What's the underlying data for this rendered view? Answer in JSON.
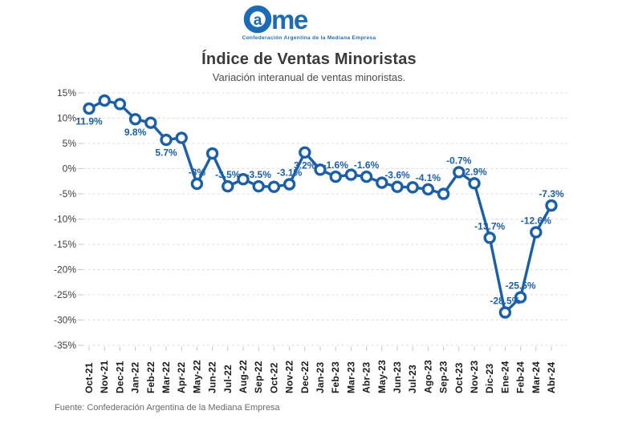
{
  "logo": {
    "brand": "Came",
    "tagline": "Confederación Argentina de la Mediana Empresa",
    "color": "#1B6CB5"
  },
  "header": {
    "title": "Índice de Ventas Minoristas",
    "subtitle": "Variación interanual de ventas minoristas."
  },
  "footer": {
    "source": "Fuente: Confederación Argentina de la Mediana Empresa"
  },
  "chart_data": {
    "type": "line",
    "title": "Índice de Ventas Minoristas",
    "subtitle": "Variación interanual de ventas minoristas.",
    "categories": [
      "Oct-21",
      "Nov-21",
      "Dec-21",
      "Jan-22",
      "Feb-22",
      "Mar-22",
      "Apr-22",
      "May-22",
      "Jun-22",
      "Jul-22",
      "Aug-22",
      "Sep-22",
      "Oct-22",
      "Nov-22",
      "Dec-22",
      "Jan-23",
      "Feb-23",
      "Mar-23",
      "Abr-23",
      "May-23",
      "Jun-23",
      "Jul-23",
      "Ago-23",
      "Sep-23",
      "Oct-23",
      "Nov-23",
      "Dic-23",
      "Ene-24",
      "Feb-24",
      "Mar-24",
      "Abr-24"
    ],
    "values": [
      11.9,
      13.5,
      12.8,
      9.8,
      9.1,
      5.7,
      6.1,
      -3.0,
      3.0,
      -3.5,
      -2.1,
      -3.5,
      -3.6,
      -3.1,
      3.2,
      -0.2,
      -1.6,
      -1.2,
      -1.6,
      -2.8,
      -3.6,
      -3.7,
      -4.1,
      -5.0,
      -0.7,
      -2.9,
      -13.7,
      -28.5,
      -25.5,
      -12.6,
      -7.3
    ],
    "point_labels": [
      "11.9%",
      null,
      null,
      "9.8%",
      null,
      "5.7%",
      null,
      "-3%",
      null,
      "-3.5%",
      null,
      "-3.5%",
      null,
      "-3.1%",
      "3.2%",
      null,
      "-1.6%",
      null,
      "-1.6%",
      null,
      "-3.6%",
      null,
      "-4.1%",
      null,
      "-0.7%",
      "-2.9%",
      "-13.7%",
      "-28.5%",
      "-25.5%",
      "-12.6%",
      "-7.3%"
    ],
    "yticks": [
      "15%",
      "10%",
      "5%",
      "0%",
      "-5%",
      "-10%",
      "-15%",
      "-20%",
      "-25%",
      "-30%",
      "-35%"
    ],
    "ylim": [
      -35,
      15
    ],
    "ytick_step": 5,
    "xlabel": "",
    "ylabel": "",
    "grid": "dashed-horizontal",
    "legend": "none",
    "line_color": "#1B5FA8",
    "marker_fill": "#FFFFFF",
    "label_color": "#1B5FA8"
  }
}
